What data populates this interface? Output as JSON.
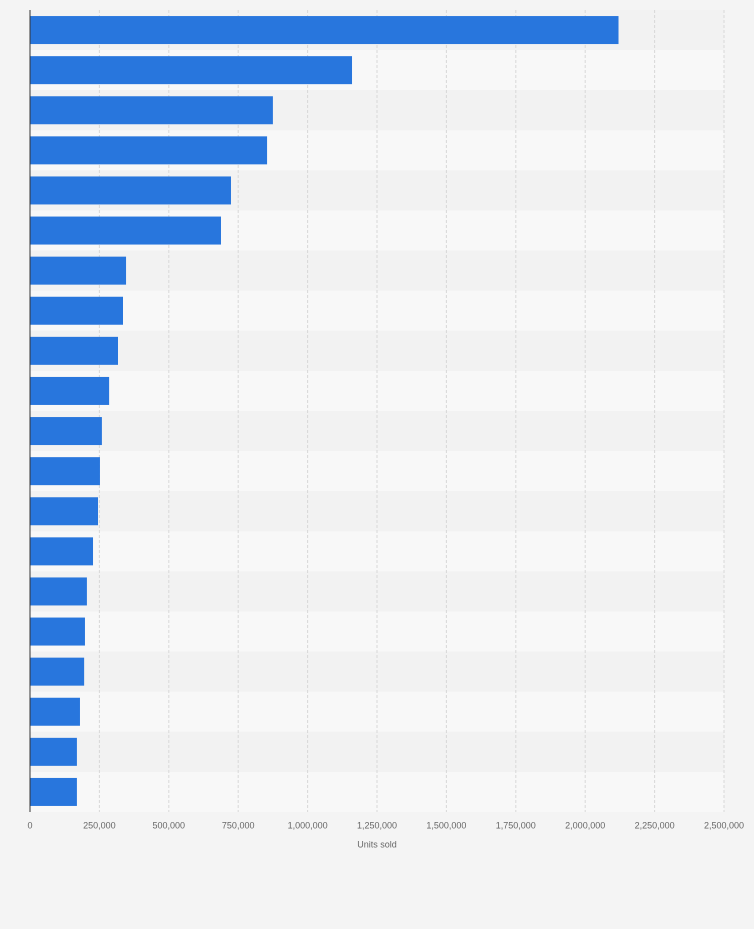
{
  "chart_data": {
    "type": "barh",
    "x_label": "Units sold",
    "categories": [
      null,
      null,
      null,
      null,
      null,
      null,
      null,
      null,
      null,
      null,
      null,
      null,
      null,
      null,
      null,
      null,
      null,
      null,
      null,
      null
    ],
    "values": [
      2120000,
      1160000,
      875000,
      854000,
      724000,
      688000,
      346000,
      335000,
      317000,
      285000,
      259000,
      252000,
      245000,
      227000,
      205000,
      198000,
      195000,
      180000,
      169000,
      169000
    ],
    "color": "#2876dd",
    "xlim": [
      0,
      2500000
    ],
    "xticks": [
      0,
      {
        "value": 250000,
        "label": "250,000"
      },
      {
        "value": 500000,
        "label": "500,000"
      },
      {
        "value": 750000,
        "label": "750,000"
      },
      {
        "value": 1000000,
        "label": "1,000,000"
      },
      {
        "value": 1250000,
        "label": "1,250,000"
      },
      {
        "value": 1500000,
        "label": "1,500,000"
      },
      {
        "value": 1750000,
        "label": "1,750,000"
      },
      {
        "value": 2000000,
        "label": "2,000,000"
      },
      {
        "value": 2250000,
        "label": "2,250,000"
      },
      {
        "value": 2500000,
        "label": "2,500,000"
      }
    ],
    "grid": true
  }
}
